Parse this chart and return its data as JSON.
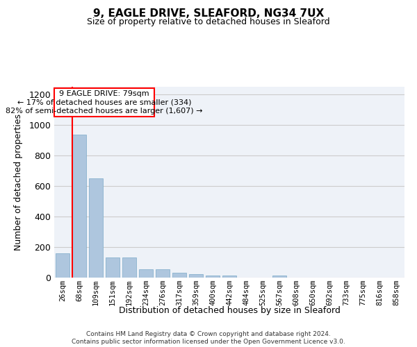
{
  "title_line1": "9, EAGLE DRIVE, SLEAFORD, NG34 7UX",
  "title_line2": "Size of property relative to detached houses in Sleaford",
  "xlabel": "Distribution of detached houses by size in Sleaford",
  "ylabel": "Number of detached properties",
  "footer_line1": "Contains HM Land Registry data © Crown copyright and database right 2024.",
  "footer_line2": "Contains public sector information licensed under the Open Government Licence v3.0.",
  "annotation_line1": "9 EAGLE DRIVE: 79sqm",
  "annotation_line2": "← 17% of detached houses are smaller (334)",
  "annotation_line3": "82% of semi-detached houses are larger (1,607) →",
  "bar_labels": [
    "26sqm",
    "68sqm",
    "109sqm",
    "151sqm",
    "192sqm",
    "234sqm",
    "276sqm",
    "317sqm",
    "359sqm",
    "400sqm",
    "442sqm",
    "484sqm",
    "525sqm",
    "567sqm",
    "608sqm",
    "650sqm",
    "692sqm",
    "733sqm",
    "775sqm",
    "816sqm",
    "858sqm"
  ],
  "bar_values": [
    160,
    935,
    650,
    130,
    130,
    55,
    55,
    30,
    25,
    12,
    12,
    0,
    0,
    14,
    0,
    0,
    0,
    0,
    0,
    0,
    0
  ],
  "bar_color": "#aec6de",
  "bar_edge_color": "#7aaac8",
  "red_line_x": 0.575,
  "ylim": [
    0,
    1250
  ],
  "yticks": [
    0,
    200,
    400,
    600,
    800,
    1000,
    1200
  ],
  "background_color": "#ffffff",
  "plot_bg_color": "#eef2f8",
  "grid_color": "#cccccc"
}
